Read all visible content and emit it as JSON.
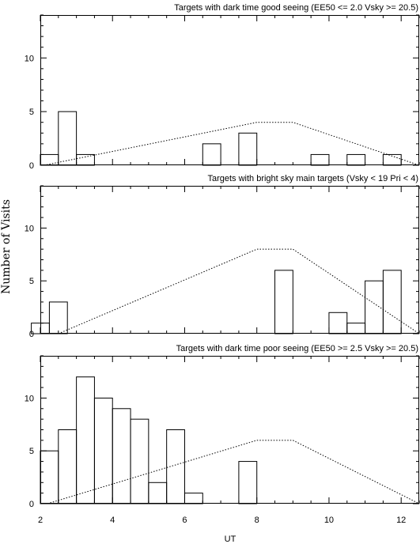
{
  "chart_data": {
    "type": "bar",
    "xlabel": "UT",
    "ylabel": "Number of Visits",
    "xlim": [
      2,
      12.5
    ],
    "ylim": [
      0,
      14
    ],
    "x_ticks": [
      2,
      4,
      6,
      8,
      10,
      12
    ],
    "y_ticks": [
      0,
      5,
      10
    ],
    "bin_width": 0.5,
    "panels": [
      {
        "title": "Targets with dark time good seeing (EE50 <= 2.0 Vsky >= 20.5)",
        "bins": [
          {
            "x": 2.25,
            "value": 1
          },
          {
            "x": 2.75,
            "value": 5
          },
          {
            "x": 3.25,
            "value": 1
          },
          {
            "x": 6.75,
            "value": 2
          },
          {
            "x": 7.75,
            "value": 3
          },
          {
            "x": 9.75,
            "value": 1
          },
          {
            "x": 10.75,
            "value": 1
          },
          {
            "x": 11.75,
            "value": 1
          }
        ],
        "model_curve": [
          [
            2.1,
            0
          ],
          [
            8,
            4
          ],
          [
            9,
            4
          ],
          [
            12.5,
            0
          ]
        ]
      },
      {
        "title": "Targets with bright sky main targets (Vsky < 19 Pri < 4)",
        "bins": [
          {
            "x": 2.0,
            "value": 1
          },
          {
            "x": 2.5,
            "value": 3
          },
          {
            "x": 8.75,
            "value": 6
          },
          {
            "x": 10.25,
            "value": 2
          },
          {
            "x": 10.75,
            "value": 1
          },
          {
            "x": 11.25,
            "value": 5
          },
          {
            "x": 11.75,
            "value": 6
          }
        ],
        "model_curve": [
          [
            2.5,
            0
          ],
          [
            8,
            8
          ],
          [
            9,
            8
          ],
          [
            12.5,
            0
          ]
        ]
      },
      {
        "title": "Targets with dark time poor seeing (EE50 >= 2.5 Vsky >= 20.5)",
        "bins": [
          {
            "x": 2.25,
            "value": 5
          },
          {
            "x": 2.75,
            "value": 7
          },
          {
            "x": 3.25,
            "value": 12
          },
          {
            "x": 3.75,
            "value": 10
          },
          {
            "x": 4.25,
            "value": 9
          },
          {
            "x": 4.75,
            "value": 8
          },
          {
            "x": 5.25,
            "value": 2
          },
          {
            "x": 5.75,
            "value": 7
          },
          {
            "x": 6.25,
            "value": 1
          },
          {
            "x": 7.75,
            "value": 4
          }
        ],
        "model_curve": [
          [
            2.2,
            0
          ],
          [
            8,
            6
          ],
          [
            9,
            6
          ],
          [
            12.5,
            0
          ]
        ]
      }
    ]
  }
}
